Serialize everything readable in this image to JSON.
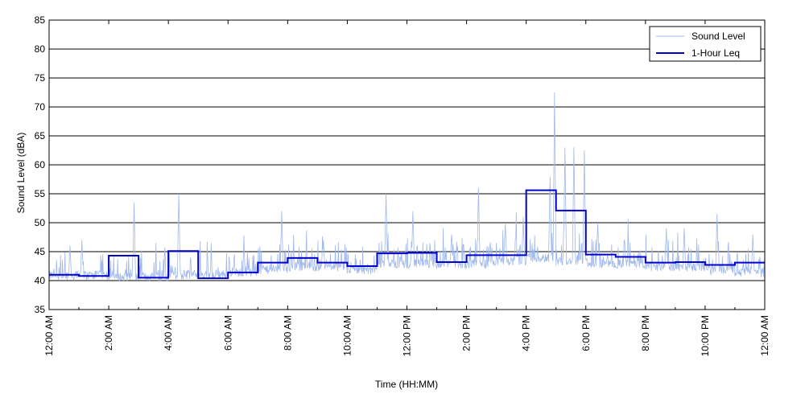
{
  "chart_data": {
    "type": "line",
    "title": "",
    "xlabel": "Time (HH:MM)",
    "ylabel": "Sound Level (dBA)",
    "x_unit": "hours",
    "xlim": [
      0,
      24
    ],
    "ylim": [
      35,
      85
    ],
    "y_ticks": [
      35,
      40,
      45,
      50,
      55,
      60,
      65,
      70,
      75,
      80,
      85
    ],
    "x_tick_hours": [
      0,
      2,
      4,
      6,
      8,
      10,
      12,
      14,
      16,
      18,
      20,
      22,
      24
    ],
    "x_tick_labels": [
      "12:00 AM",
      "2:00 AM",
      "4:00 AM",
      "6:00 AM",
      "8:00 AM",
      "10:00 AM",
      "12:00 PM",
      "2:00 PM",
      "4:00 PM",
      "6:00 PM",
      "8:00 PM",
      "10:00 PM",
      "12:00 AM"
    ],
    "grid": "horizontal",
    "legend_position": "top-right",
    "series": [
      {
        "name": "Sound Level",
        "color": "#9fb8ee",
        "style": "thin-line",
        "hourly_baseline": [
          40.5,
          40.5,
          40.2,
          40.3,
          40.6,
          40.7,
          41.0,
          41.5,
          42.0,
          42.0,
          41.5,
          42.5,
          42.5,
          42.5,
          42.5,
          43.0,
          43.5,
          43.0,
          42.5,
          42.5,
          42.0,
          42.0,
          41.5,
          41.0
        ],
        "peaks": [
          {
            "x": 0.7,
            "y": 46
          },
          {
            "x": 1.1,
            "y": 47
          },
          {
            "x": 2.85,
            "y": 53.5
          },
          {
            "x": 4.35,
            "y": 55
          },
          {
            "x": 6.2,
            "y": 43
          },
          {
            "x": 7.8,
            "y": 52
          },
          {
            "x": 9.2,
            "y": 47
          },
          {
            "x": 11.3,
            "y": 55
          },
          {
            "x": 12.2,
            "y": 52
          },
          {
            "x": 13.5,
            "y": 48
          },
          {
            "x": 14.4,
            "y": 56
          },
          {
            "x": 15.3,
            "y": 50
          },
          {
            "x": 15.9,
            "y": 51
          },
          {
            "x": 16.8,
            "y": 58
          },
          {
            "x": 16.95,
            "y": 72.5
          },
          {
            "x": 17.3,
            "y": 63
          },
          {
            "x": 17.6,
            "y": 63
          },
          {
            "x": 17.95,
            "y": 62.5
          },
          {
            "x": 18.4,
            "y": 50
          },
          {
            "x": 19.3,
            "y": 47
          },
          {
            "x": 20.7,
            "y": 49
          },
          {
            "x": 21.3,
            "y": 49
          },
          {
            "x": 22.4,
            "y": 51.5
          },
          {
            "x": 23.6,
            "y": 48
          }
        ]
      },
      {
        "name": "1-Hour Leq",
        "color": "#0000cc",
        "style": "step",
        "hour_start": [
          0,
          1,
          2,
          3,
          4,
          5,
          6,
          7,
          8,
          9,
          10,
          11,
          12,
          13,
          14,
          15,
          16,
          17,
          18,
          19,
          20,
          21,
          22,
          23
        ],
        "values": [
          41.0,
          40.8,
          44.3,
          40.5,
          45.1,
          40.4,
          41.4,
          43.1,
          43.9,
          43.1,
          42.5,
          44.7,
          44.8,
          43.2,
          44.4,
          44.4,
          55.6,
          52.1,
          44.5,
          44.1,
          43.1,
          43.2,
          42.7,
          43.1
        ]
      }
    ]
  }
}
